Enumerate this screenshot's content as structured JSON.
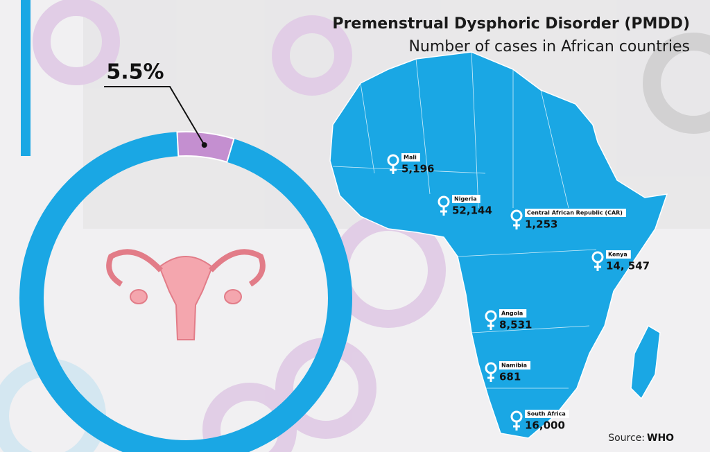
{
  "chart_data": [
    {
      "type": "pie",
      "values": [
        5.5
      ],
      "value_labels": [
        "5.5%"
      ],
      "color": "#c48fd0",
      "track_color": "#1aa7e4"
    },
    {
      "type": "map",
      "title": "Premenstrual Dysphoric Disorder (PMDD)",
      "subtitle": "Number of cases in African countries",
      "categories": [
        "Mali",
        "Nigeria",
        "Central African Republic (CAR)",
        "Kenya",
        "Angola",
        "Namibia",
        "South Africa"
      ],
      "values": [
        5196,
        52144,
        1253,
        14547,
        8531,
        681,
        16000
      ],
      "value_labels": [
        "5,196",
        "52,144",
        "1,253",
        "14, 547",
        "8,531",
        "681",
        "16,000"
      ],
      "color": "#1aa7e4",
      "source": {
        "label": "Source:",
        "name": "WHO"
      }
    }
  ]
}
